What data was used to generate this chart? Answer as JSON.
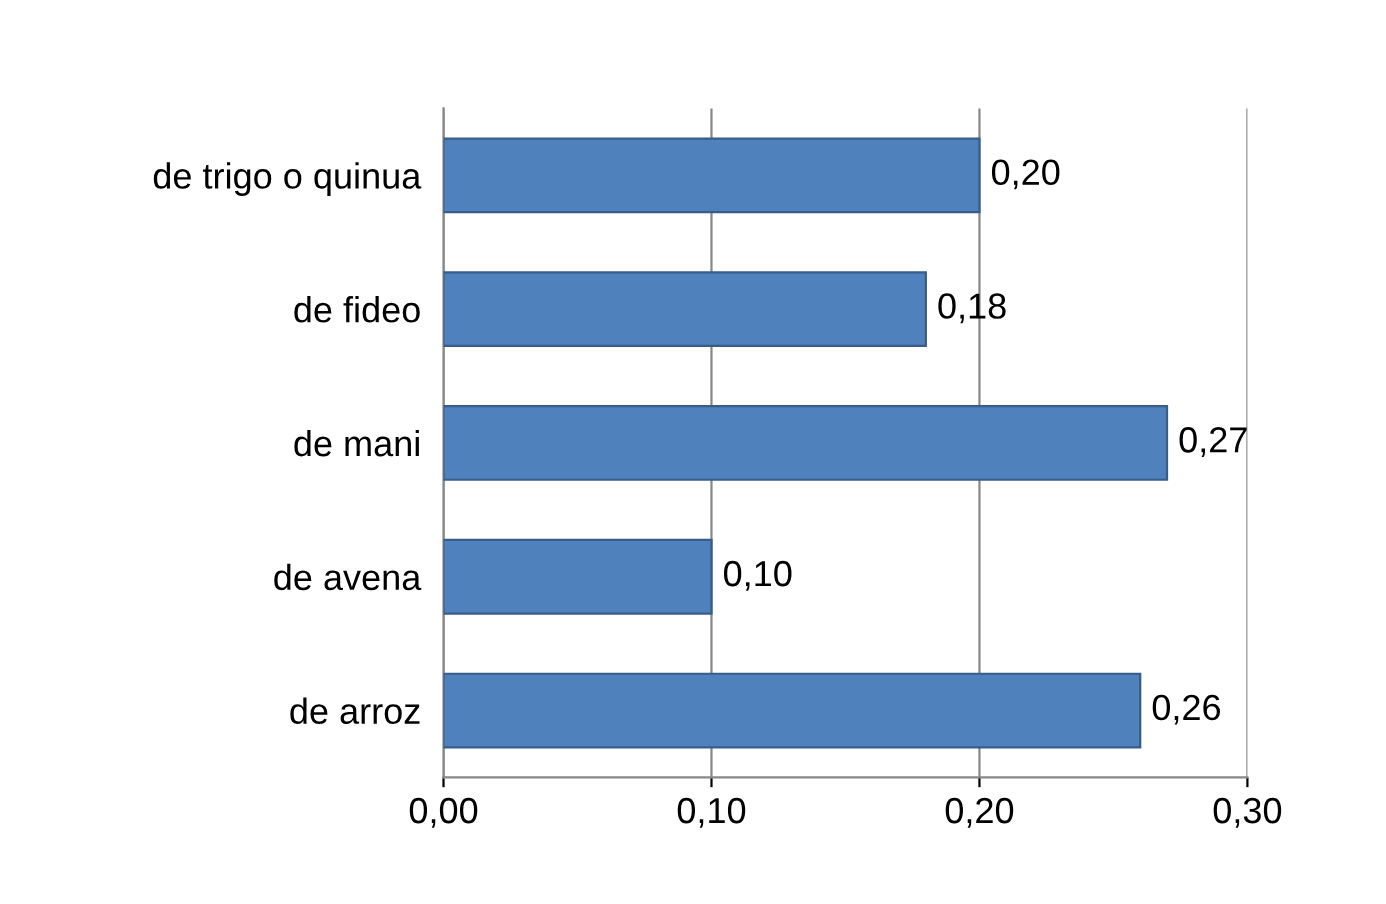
{
  "chart_data": {
    "type": "bar",
    "orientation": "horizontal",
    "categories": [
      "de trigo o quinua",
      "de fideo",
      "de mani",
      "de avena",
      "de arroz"
    ],
    "values": [
      0.2,
      0.18,
      0.27,
      0.1,
      0.26
    ],
    "value_labels": [
      "0,20",
      "0,18",
      "0,27",
      "0,10",
      "0,26"
    ],
    "color": "#4f81bd",
    "xlim": [
      0,
      0.3
    ],
    "xticks": [
      {
        "value": 0,
        "label": "0,00"
      },
      {
        "value": 0.1,
        "label": "0,10"
      },
      {
        "value": 0.2,
        "label": "0,20"
      },
      {
        "value": 0.3,
        "label": "0,30"
      }
    ],
    "grid": "x",
    "legend": false
  }
}
